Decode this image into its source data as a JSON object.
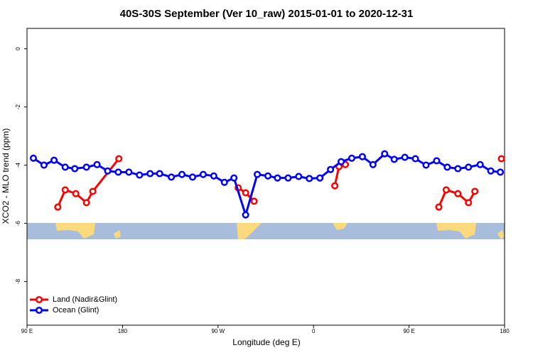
{
  "chart_data": {
    "type": "line",
    "title": "40S-30S September (Ver 10_raw)   2015-01-01 to 2020-12-31",
    "x_label": "Longitude (deg E)",
    "y_label": "XCO2 - MLO trend (ppm)",
    "xlim": [
      90,
      540
    ],
    "ylim": [
      -9.5,
      0.7
    ],
    "xticks": [
      {
        "value": 90,
        "label": "90 E"
      },
      {
        "value": 180,
        "label": "180"
      },
      {
        "value": 270,
        "label": "90 W"
      },
      {
        "value": 360,
        "label": "0"
      },
      {
        "value": 450,
        "label": "90 E"
      },
      {
        "value": 540,
        "label": "180"
      }
    ],
    "yticks": [
      0,
      -2,
      -4,
      -6,
      -8
    ],
    "legend": "bottom-left",
    "series": [
      {
        "name": "Land (Nadir&Glint)",
        "color": "#ff0000",
        "x": [
          119,
          126,
          136,
          146,
          152,
          176.5,
          null,
          289,
          296,
          304,
          null,
          380,
          384,
          390,
          null,
          478,
          485,
          496,
          506,
          512,
          null,
          537
        ],
        "values": [
          -5.44,
          -4.85,
          -4.98,
          -5.29,
          -4.9,
          -3.78,
          null,
          -4.78,
          -4.95,
          -5.24,
          null,
          -4.71,
          -4.05,
          -3.98,
          null,
          -5.44,
          -4.85,
          -4.98,
          -5.29,
          -4.9,
          null,
          -3.78
        ]
      },
      {
        "name": "Ocean (Glint)",
        "color": "#0000ff",
        "x": [
          96,
          106,
          115.5,
          126,
          135,
          146,
          156,
          166,
          176,
          186,
          196,
          206,
          215,
          226,
          236,
          246,
          256,
          266,
          276,
          285,
          296,
          307,
          317,
          326,
          336,
          346,
          356,
          366,
          376,
          386,
          396,
          406,
          416,
          427,
          436,
          446,
          456,
          466,
          476,
          486,
          496,
          506,
          517,
          527,
          536
        ],
        "values": [
          -3.76,
          -4.0,
          -3.83,
          -4.07,
          -4.12,
          -4.07,
          -3.98,
          -4.2,
          -4.24,
          -4.24,
          -4.34,
          -4.29,
          -4.29,
          -4.41,
          -4.32,
          -4.41,
          -4.32,
          -4.37,
          -4.59,
          -4.44,
          -5.71,
          -4.32,
          -4.37,
          -4.44,
          -4.44,
          -4.39,
          -4.46,
          -4.44,
          -4.15,
          -3.88,
          -3.76,
          -3.71,
          -3.98,
          -3.61,
          -3.8,
          -3.73,
          -3.78,
          -4.0,
          -3.85,
          -4.07,
          -4.12,
          -4.07,
          -3.98,
          -4.2,
          -4.24
        ]
      }
    ]
  }
}
